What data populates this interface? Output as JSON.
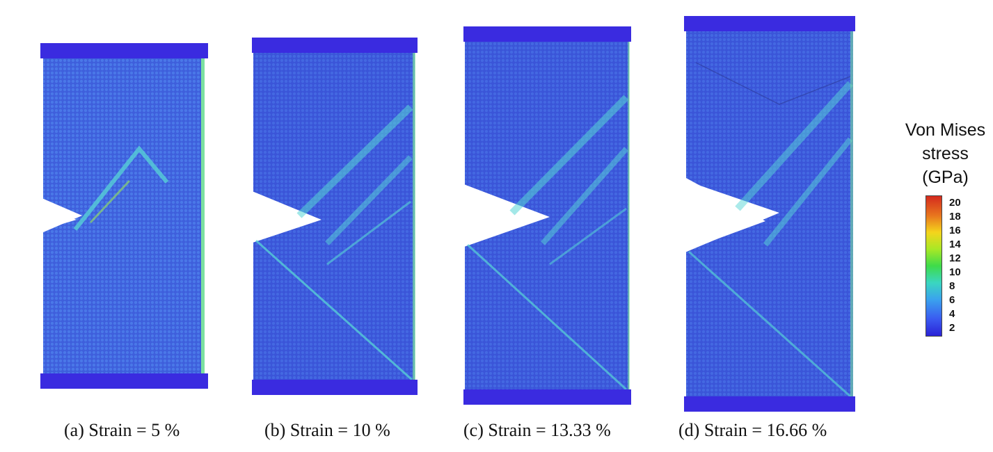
{
  "figure": {
    "panels": [
      {
        "caption": "(a) Strain = 5 %"
      },
      {
        "caption": "(b) Strain = 10 %"
      },
      {
        "caption": "(c) Strain = 13.33 %"
      },
      {
        "caption": "(d) Strain = 16.66 %"
      }
    ],
    "legend": {
      "title_line1": "Von Mises",
      "title_line2": "stress (GPa)",
      "ticks": [
        "20",
        "18",
        "16",
        "14",
        "12",
        "10",
        "8",
        "6",
        "4",
        "2"
      ]
    },
    "colors": {
      "bar_color": "#3a2be0",
      "background_fill": "#3f62e0",
      "band_color": "#58d6d6",
      "edge_color": "#7be0a0"
    }
  }
}
